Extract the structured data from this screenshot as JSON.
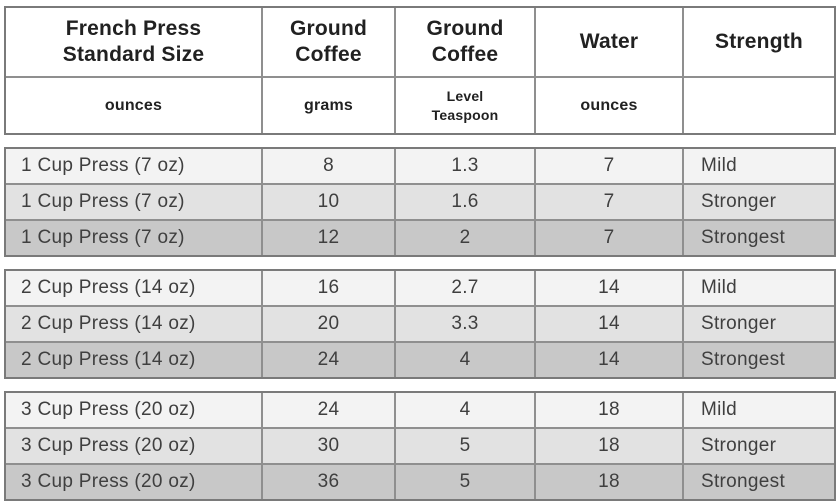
{
  "chart_data": {
    "type": "table",
    "columns": [
      {
        "header": "French Press Standard Size",
        "subheader": "ounces"
      },
      {
        "header": "Ground Coffee",
        "subheader": "grams"
      },
      {
        "header": "Ground Coffee",
        "subheader": "Level Teaspoon"
      },
      {
        "header": "Water",
        "subheader": "ounces"
      },
      {
        "header": "Strength",
        "subheader": ""
      }
    ],
    "groups": [
      {
        "rows": [
          {
            "size": "1 Cup Press (7 oz)",
            "ground_coffee_grams": "8",
            "ground_coffee_tsp": "1.3",
            "water_oz": "7",
            "strength": "Mild"
          },
          {
            "size": "1 Cup Press (7 oz)",
            "ground_coffee_grams": "10",
            "ground_coffee_tsp": "1.6",
            "water_oz": "7",
            "strength": "Stronger"
          },
          {
            "size": "1 Cup Press (7 oz)",
            "ground_coffee_grams": "12",
            "ground_coffee_tsp": "2",
            "water_oz": "7",
            "strength": "Strongest"
          }
        ]
      },
      {
        "rows": [
          {
            "size": "2 Cup Press (14 oz)",
            "ground_coffee_grams": "16",
            "ground_coffee_tsp": "2.7",
            "water_oz": "14",
            "strength": "Mild"
          },
          {
            "size": "2 Cup Press (14 oz)",
            "ground_coffee_grams": "20",
            "ground_coffee_tsp": "3.3",
            "water_oz": "14",
            "strength": "Stronger"
          },
          {
            "size": "2 Cup Press (14 oz)",
            "ground_coffee_grams": "24",
            "ground_coffee_tsp": "4",
            "water_oz": "14",
            "strength": "Strongest"
          }
        ]
      },
      {
        "rows": [
          {
            "size": "3 Cup Press (20 oz)",
            "ground_coffee_grams": "24",
            "ground_coffee_tsp": "4",
            "water_oz": "18",
            "strength": "Mild"
          },
          {
            "size": "3 Cup Press (20 oz)",
            "ground_coffee_grams": "30",
            "ground_coffee_tsp": "5",
            "water_oz": "18",
            "strength": "Stronger"
          },
          {
            "size": "3 Cup Press (20 oz)",
            "ground_coffee_grams": "36",
            "ground_coffee_tsp": "5",
            "water_oz": "18",
            "strength": "Strongest"
          }
        ]
      }
    ],
    "layout": {
      "grid": "bordered",
      "legend": "none",
      "row_shading_by_strength": true
    }
  },
  "colors": {
    "background": "#ffffff",
    "header_bg": "#ffffff",
    "row_mild_bg": "#f3f3f3",
    "row_stronger_bg": "#e2e2e2",
    "row_strongest_bg": "#c8c8c8",
    "inner_border": "#8f8f8f",
    "outer_border": "#7a7a7a",
    "header_text": "#212121",
    "body_text": "#3f3f3f"
  }
}
